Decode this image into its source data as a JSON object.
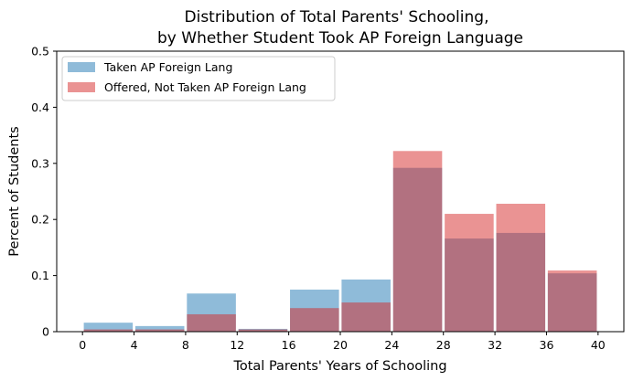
{
  "chart_data": {
    "type": "bar",
    "title_line1": "Distribution of Total Parents' Schooling,",
    "title_line2": "by Whether Student Took AP Foreign Language",
    "xlabel": "Total Parents' Years of Schooling",
    "ylabel": "Percent of Students",
    "xlim": [
      -2,
      42
    ],
    "ylim": [
      0,
      0.5
    ],
    "xticks": [
      0,
      4,
      8,
      12,
      16,
      20,
      24,
      28,
      32,
      36,
      40
    ],
    "yticks": [
      0,
      0.1,
      0.2,
      0.3,
      0.4,
      0.5
    ],
    "ytick_labels": [
      "0",
      "0.1",
      "0.2",
      "0.3",
      "0.4",
      "0.5"
    ],
    "bin_edges": [
      0,
      4,
      8,
      12,
      16,
      20,
      24,
      28,
      32,
      36,
      40
    ],
    "legend_position": "top-left",
    "grid": false,
    "series": [
      {
        "name": "Taken AP Foreign Lang",
        "color": "#1f77b4",
        "alpha": 0.5,
        "values": [
          0.016,
          0.01,
          0.068,
          0.005,
          0.075,
          0.093,
          0.292,
          0.166,
          0.176,
          0.104
        ]
      },
      {
        "name": "Offered, Not Taken AP Foreign Lang",
        "color": "#d62728",
        "alpha": 0.5,
        "values": [
          0.004,
          0.004,
          0.031,
          0.004,
          0.042,
          0.052,
          0.322,
          0.21,
          0.228,
          0.109
        ]
      }
    ]
  }
}
